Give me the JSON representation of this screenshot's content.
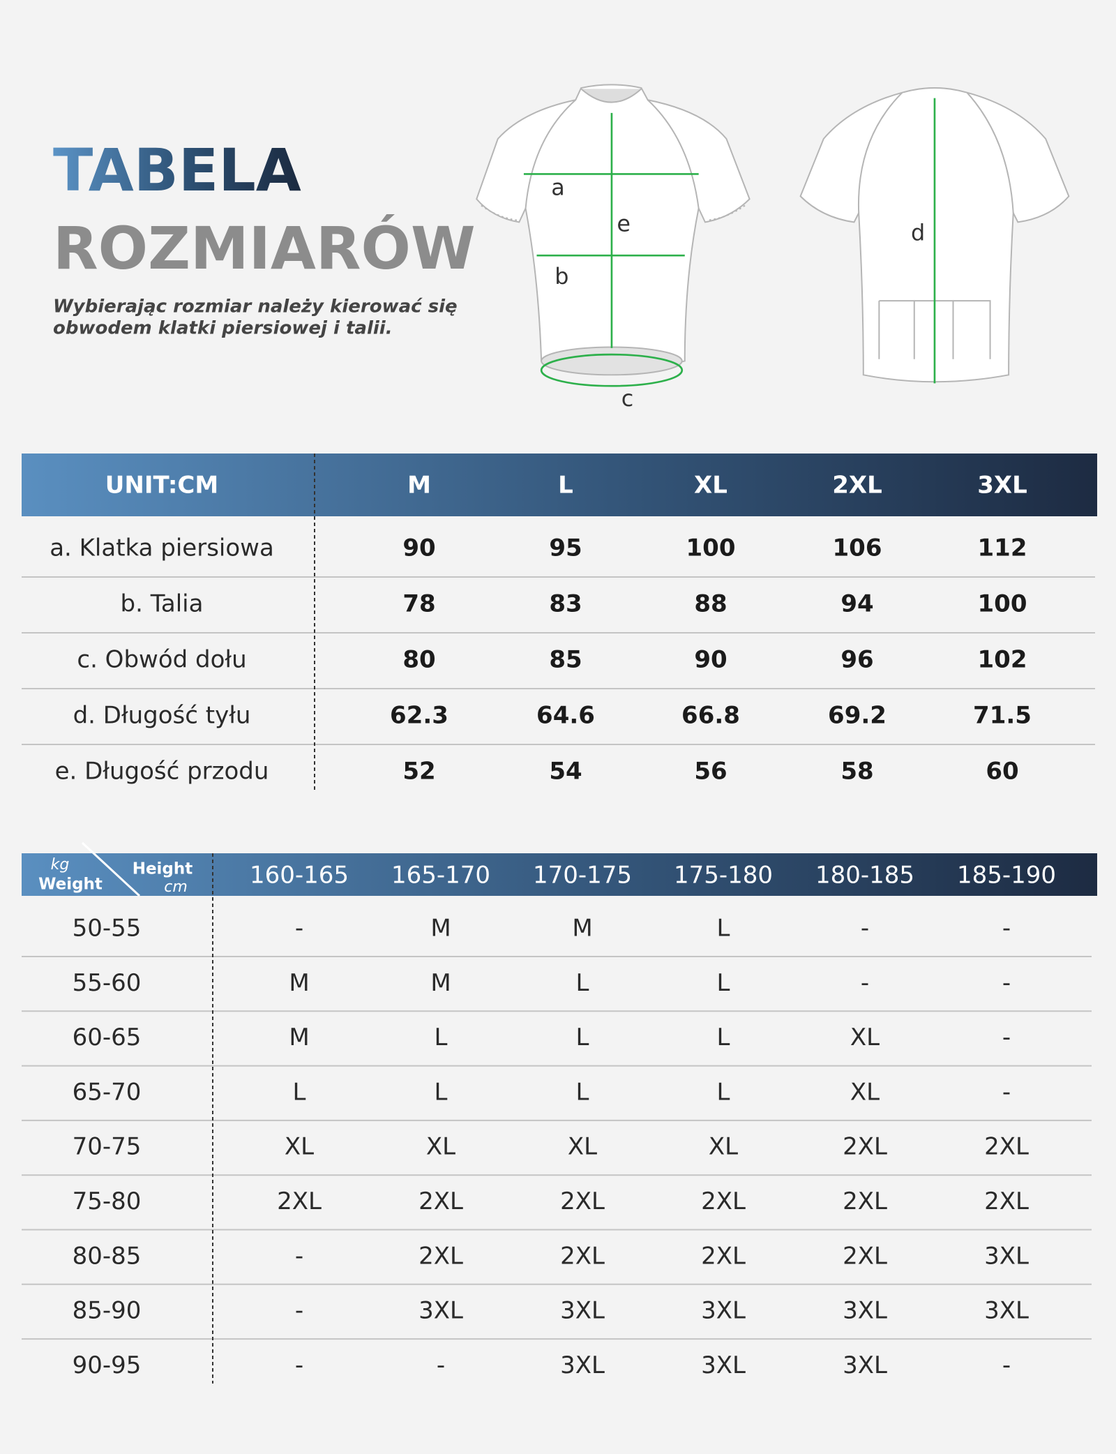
{
  "header": {
    "title_line1": "TABELA",
    "title_line2": "ROZMIARÓW",
    "subtitle": [
      "Wybierając rozmiar należy kierować się",
      "obwodem klatki piersiowej i talii."
    ]
  },
  "diagram": {
    "labels": {
      "a": "a",
      "b": "b",
      "c": "c",
      "d": "d",
      "e": "e"
    }
  },
  "measurements": {
    "header": [
      "UNIT:CM",
      "M",
      "L",
      "XL",
      "2XL",
      "3XL"
    ],
    "rows": [
      [
        "a. Klatka piersiowa",
        "90",
        "95",
        "100",
        "106",
        "112"
      ],
      [
        "b. Talia",
        "78",
        "83",
        "88",
        "94",
        "100"
      ],
      [
        "c. Obwód dołu",
        "80",
        "85",
        "90",
        "96",
        "102"
      ],
      [
        "d. Długość tyłu",
        "62.3",
        "64.6",
        "66.8",
        "69.2",
        "71.5"
      ],
      [
        "e. Długość przodu",
        "52",
        "54",
        "56",
        "58",
        "60"
      ]
    ]
  },
  "size_guide": {
    "corner": {
      "weight_unit": "kg",
      "weight": "Weight",
      "height": "Height",
      "height_unit": "cm"
    },
    "heights": [
      "160-165",
      "165-170",
      "170-175",
      "175-180",
      "180-185",
      "185-190"
    ],
    "rows": [
      [
        "50-55",
        "-",
        "M",
        "M",
        "L",
        "-",
        "-"
      ],
      [
        "55-60",
        "M",
        "M",
        "L",
        "L",
        "-",
        "-"
      ],
      [
        "60-65",
        "M",
        "L",
        "L",
        "L",
        "XL",
        "-"
      ],
      [
        "65-70",
        "L",
        "L",
        "L",
        "L",
        "XL",
        "-"
      ],
      [
        "70-75",
        "XL",
        "XL",
        "XL",
        "XL",
        "2XL",
        "2XL"
      ],
      [
        "75-80",
        "2XL",
        "2XL",
        "2XL",
        "2XL",
        "2XL",
        "2XL"
      ],
      [
        "80-85",
        "-",
        "2XL",
        "2XL",
        "2XL",
        "2XL",
        "3XL"
      ],
      [
        "85-90",
        "-",
        "3XL",
        "3XL",
        "3XL",
        "3XL",
        "3XL"
      ],
      [
        "90-95",
        "-",
        "-",
        "3XL",
        "3XL",
        "3XL",
        "-"
      ]
    ]
  }
}
